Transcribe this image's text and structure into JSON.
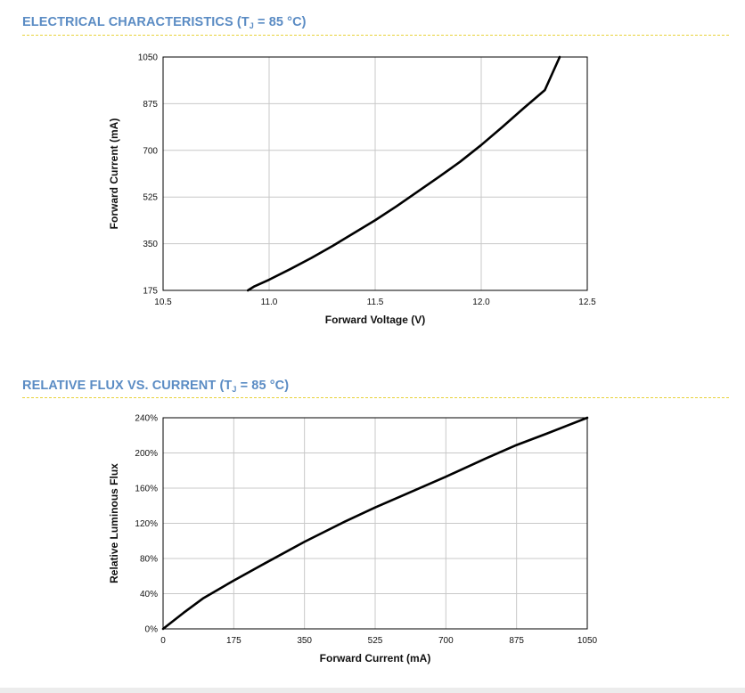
{
  "sections": [
    {
      "title_main": "ELECTRICAL CHARACTERISTICS (T",
      "title_sub": "J",
      "title_rest": " = 85 °C)"
    },
    {
      "title_main": "RELATIVE FLUX VS. CURRENT (T",
      "title_sub": "J",
      "title_rest": " = 85 °C)"
    }
  ],
  "colors": {
    "title": "#5b8cc4",
    "rule": "#e8d23a",
    "grid": "#c8c8c8",
    "line": "#000000"
  },
  "chart_data": [
    {
      "type": "line",
      "title": "",
      "xlabel": "Forward Voltage (V)",
      "ylabel": "Forward Current (mA)",
      "xlim": [
        10.5,
        12.5
      ],
      "ylim": [
        175,
        1050
      ],
      "x_ticks": [
        "10.5",
        "11.0",
        "11.5",
        "12.0",
        "12.5"
      ],
      "y_ticks": [
        "175",
        "350",
        "525",
        "700",
        "875",
        "1050"
      ],
      "grid": true,
      "series": [
        {
          "x": [
            10.9,
            10.93,
            11.0,
            11.1,
            11.2,
            11.3,
            11.4,
            11.5,
            11.6,
            11.7,
            11.8,
            11.9,
            12.0,
            12.1,
            12.2,
            12.3,
            12.37
          ],
          "y": [
            175,
            190,
            215,
            255,
            297,
            342,
            390,
            438,
            490,
            545,
            600,
            657,
            720,
            788,
            858,
            926,
            1050
          ]
        }
      ]
    },
    {
      "type": "line",
      "title": "",
      "xlabel": "Forward Current (mA)",
      "ylabel": "Relative Luminous Flux",
      "xlim": [
        0,
        1050
      ],
      "ylim": [
        0,
        240
      ],
      "x_ticks": [
        "0",
        "175",
        "350",
        "525",
        "700",
        "875",
        "1050"
      ],
      "y_ticks": [
        "0%",
        "40%",
        "80%",
        "120%",
        "160%",
        "200%",
        "240%"
      ],
      "grid": true,
      "series": [
        {
          "x": [
            0,
            50,
            100,
            175,
            250,
            350,
            450,
            525,
            600,
            700,
            800,
            875,
            950,
            1050
          ],
          "y": [
            0,
            18,
            35,
            55,
            74,
            99,
            122,
            138,
            153,
            173,
            194,
            209,
            222,
            240
          ]
        }
      ]
    }
  ]
}
